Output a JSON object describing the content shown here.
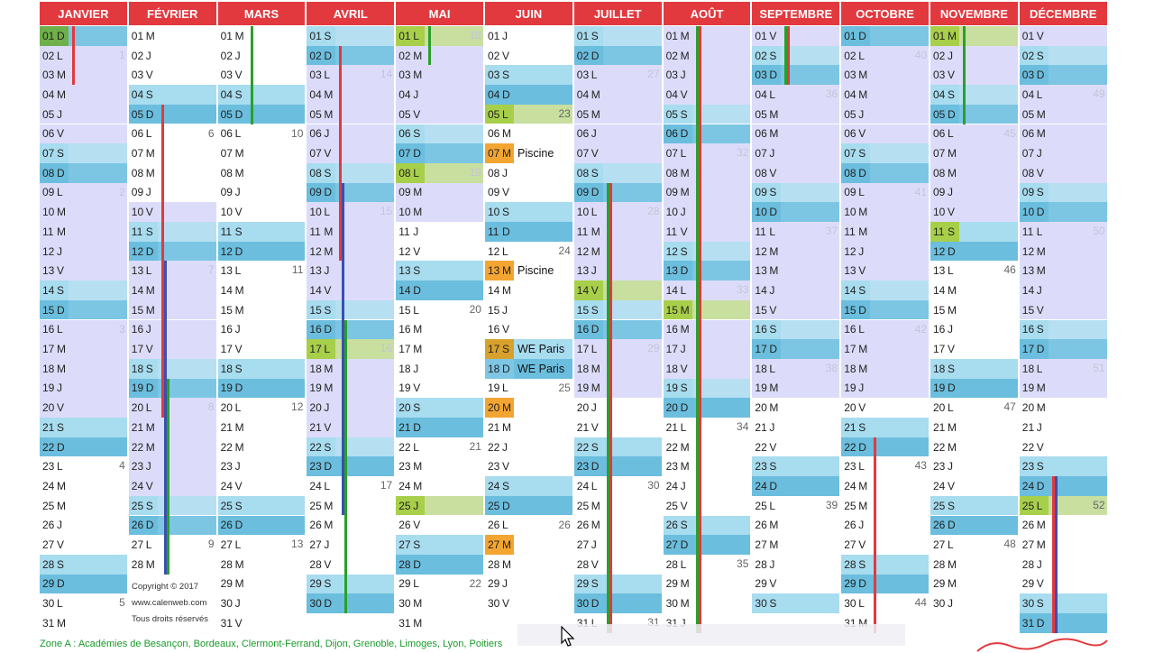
{
  "months": [
    {
      "name": "JANVIER",
      "days": 31,
      "start": 6
    },
    {
      "name": "FÉVRIER",
      "days": 28,
      "start": 2
    },
    {
      "name": "MARS",
      "days": 31,
      "start": 2
    },
    {
      "name": "AVRIL",
      "days": 30,
      "start": 5
    },
    {
      "name": "MAI",
      "days": 31,
      "start": 0
    },
    {
      "name": "JUIN",
      "days": 30,
      "start": 3
    },
    {
      "name": "JUILLET",
      "days": 31,
      "start": 5
    },
    {
      "name": "AOÛT",
      "days": 31,
      "start": 1
    },
    {
      "name": "SEPTEMBRE",
      "days": 30,
      "start": 4
    },
    {
      "name": "OCTOBRE",
      "days": 31,
      "start": 6
    },
    {
      "name": "NOVEMBRE",
      "days": 30,
      "start": 2
    },
    {
      "name": "DÉCEMBRE",
      "days": 31,
      "start": 4
    }
  ],
  "day_letters": [
    "L",
    "M",
    "M",
    "J",
    "V",
    "S",
    "D"
  ],
  "holidays": [
    "0-1",
    "3-17",
    "4-1",
    "4-8",
    "4-25",
    "5-5",
    "6-14",
    "7-15",
    "10-1",
    "10-11",
    "11-25"
  ],
  "events": [
    {
      "month": 5,
      "day": 7,
      "label": "Piscine",
      "color": "#f3a532"
    },
    {
      "month": 5,
      "day": 13,
      "label": "Piscine",
      "color": "#f3a532"
    },
    {
      "month": 5,
      "day": 17,
      "label": "WE Paris",
      "color": "#d8a12c"
    },
    {
      "month": 5,
      "day": 18,
      "label": "WE Paris",
      "color": "#7fc6e4"
    }
  ],
  "orange_days": [
    "5-20",
    "5-27"
  ],
  "vacation_periods": [
    {
      "start": "0-1",
      "end": "0-20"
    },
    {
      "start": "1-10",
      "end": "1-26"
    },
    {
      "start": "3-1",
      "end": "3-22"
    },
    {
      "start": "4-1",
      "end": "4-10"
    },
    {
      "start": "6-1",
      "end": "6-19"
    },
    {
      "start": "7-1",
      "end": "7-19"
    },
    {
      "start": "8-1",
      "end": "8-19"
    },
    {
      "start": "9-1",
      "end": "9-19"
    },
    {
      "start": "10-1",
      "end": "10-10"
    },
    {
      "start": "11-1",
      "end": "11-19"
    }
  ],
  "bars": [
    {
      "month": 0,
      "from": 1,
      "to": 3,
      "color": "#e2393f"
    },
    {
      "month": 1,
      "from": 5,
      "to": 20,
      "color": "#e2393f"
    },
    {
      "month": 1,
      "from": 13,
      "to": 28,
      "color": "#3a4fb0"
    },
    {
      "month": 1,
      "from": 19,
      "to": 28,
      "color": "#2aa02a"
    },
    {
      "month": 2,
      "from": 1,
      "to": 5,
      "color": "#2aa02a"
    },
    {
      "month": 3,
      "from": 2,
      "to": 12,
      "color": "#e2393f"
    },
    {
      "month": 3,
      "from": 9,
      "to": 25,
      "color": "#3a4fb0"
    },
    {
      "month": 3,
      "from": 16,
      "to": 30,
      "color": "#2aa02a"
    },
    {
      "month": 4,
      "from": 1,
      "to": 2,
      "color": "#2aa02a"
    },
    {
      "month": 6,
      "from": 9,
      "to": 31,
      "color": "#2aa02a"
    },
    {
      "month": 6,
      "from": 9,
      "to": 31,
      "color": "#e2393f"
    },
    {
      "month": 7,
      "from": 1,
      "to": 31,
      "color": "#2aa02a"
    },
    {
      "month": 7,
      "from": 1,
      "to": 31,
      "color": "#e2393f"
    },
    {
      "month": 8,
      "from": 1,
      "to": 3,
      "color": "#2aa02a"
    },
    {
      "month": 8,
      "from": 1,
      "to": 3,
      "color": "#e2393f"
    },
    {
      "month": 9,
      "from": 22,
      "to": 31,
      "color": "#e2393f"
    },
    {
      "month": 10,
      "from": 1,
      "to": 5,
      "color": "#2aa02a"
    },
    {
      "month": 11,
      "from": 24,
      "to": 31,
      "color": "#e2393f"
    },
    {
      "month": 11,
      "from": 24,
      "to": 31,
      "color": "#3a4fb0"
    }
  ],
  "copyright": {
    "line1": "Copyright  ©  2017",
    "line2": "www.calenweb.com",
    "line3": "Tous droits réservés"
  },
  "zone_text": "Zone A : Académies de Besançon,  Bordeaux,  Clermont-Ferrand,  Dijon,  Grenoble,  Limoges,  Lyon,  Poitiers",
  "colors": {
    "header": "#e2393f",
    "weekend_sat": "#a8dcef",
    "weekend_sun": "#6bbede",
    "vacation": "#dcdcfa",
    "holiday": "#a8cf4a",
    "holiday_sun": "#6fb04a"
  }
}
